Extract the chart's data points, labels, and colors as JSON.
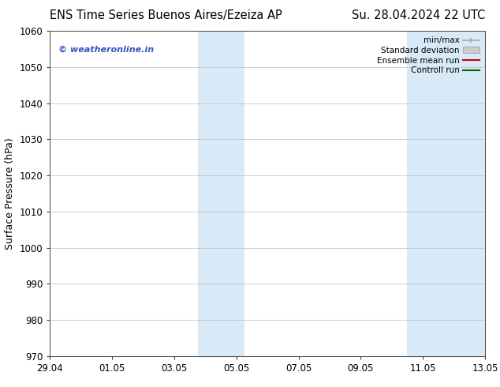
{
  "title_left": "ENS Time Series Buenos Aires/Ezeiza AP",
  "title_right": "Su. 28.04.2024 22 UTC",
  "ylabel": "Surface Pressure (hPa)",
  "ylim": [
    970,
    1060
  ],
  "yticks": [
    970,
    980,
    990,
    1000,
    1010,
    1020,
    1030,
    1040,
    1050,
    1060
  ],
  "xtick_labels": [
    "29.04",
    "01.05",
    "03.05",
    "05.05",
    "07.05",
    "09.05",
    "11.05",
    "13.05"
  ],
  "xtick_positions": [
    0,
    2,
    4,
    6,
    8,
    10,
    12,
    14
  ],
  "xlim": [
    0,
    14
  ],
  "shaded_bands": [
    {
      "x_start": 4.75,
      "x_end": 6.25,
      "color": "#d8eaf8"
    },
    {
      "x_start": 11.5,
      "x_end": 14.0,
      "color": "#d8eaf8"
    }
  ],
  "watermark_text": "© weatheronline.in",
  "watermark_color": "#3355bb",
  "legend_entries": [
    {
      "label": "min/max"
    },
    {
      "label": "Standard deviation"
    },
    {
      "label": "Ensemble mean run"
    },
    {
      "label": "Controll run"
    }
  ],
  "legend_handle_colors": [
    "#aaaaaa",
    "#cccccc",
    "#cc0000",
    "#006600"
  ],
  "background_color": "#ffffff",
  "plot_bg_color": "#ffffff",
  "grid_color": "#bbbbbb",
  "font_size_title": 10.5,
  "font_size_labels": 9,
  "font_size_ticks": 8.5,
  "font_size_watermark": 8,
  "font_size_legend": 7.5
}
